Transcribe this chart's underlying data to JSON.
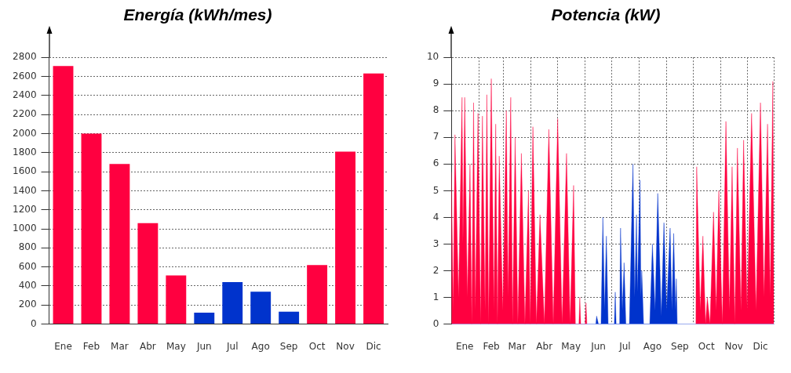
{
  "chart_data": [
    {
      "type": "bar",
      "title": "Energía (kWh/mes)",
      "categories": [
        "Ene",
        "Feb",
        "Mar",
        "Abr",
        "May",
        "Jun",
        "Jul",
        "Ago",
        "Sep",
        "Oct",
        "Nov",
        "Dic"
      ],
      "values": [
        2710,
        2000,
        1680,
        1060,
        510,
        120,
        440,
        340,
        130,
        620,
        1810,
        2630
      ],
      "colors": [
        "#ff0040",
        "#ff0040",
        "#ff0040",
        "#ff0040",
        "#ff0040",
        "#0033cc",
        "#0033cc",
        "#0033cc",
        "#0033cc",
        "#ff0040",
        "#ff0040",
        "#ff0040"
      ],
      "ylim": [
        0,
        2800
      ],
      "yticks": [
        0,
        200,
        400,
        600,
        800,
        1000,
        1200,
        1400,
        1600,
        1800,
        2000,
        2200,
        2400,
        2600,
        2800
      ],
      "grid": "y"
    },
    {
      "type": "area",
      "title": "Potencia (kW)",
      "xlim": [
        "--01-01",
        "--12-31"
      ],
      "xticks": [
        {
          "value": "--01-01",
          "label": null
        },
        {
          "value": "--01-16",
          "label": "Ene"
        },
        {
          "value": "--02-01",
          "label": null
        },
        {
          "value": "--02-15",
          "label": "Feb"
        },
        {
          "value": "--03-01",
          "label": null
        },
        {
          "value": "--03-16",
          "label": "Mar"
        },
        {
          "value": "--04-01",
          "label": null
        },
        {
          "value": "--04-16",
          "label": "Abr"
        },
        {
          "value": "--05-01",
          "label": null
        },
        {
          "value": "--05-16",
          "label": "May"
        },
        {
          "value": "--06-01",
          "label": null
        },
        {
          "value": "--06-16",
          "label": "Jun"
        },
        {
          "value": "--07-01",
          "label": null
        },
        {
          "value": "--07-16",
          "label": "Jul"
        },
        {
          "value": "--08-01",
          "label": null
        },
        {
          "value": "--08-16",
          "label": "Ago"
        },
        {
          "value": "--09-01",
          "label": null
        },
        {
          "value": "--09-16",
          "label": "Sep"
        },
        {
          "value": "--10-01",
          "label": null
        },
        {
          "value": "--10-16",
          "label": "Oct"
        },
        {
          "value": "--11-01",
          "label": null
        },
        {
          "value": "--11-16",
          "label": "Nov"
        },
        {
          "value": "--12-01",
          "label": null
        },
        {
          "value": "--12-16",
          "label": "Dic"
        },
        {
          "value": "--12-31",
          "label": null
        }
      ],
      "ylim": [
        0,
        10
      ],
      "yticks": [
        0,
        1,
        2,
        3,
        4,
        5,
        6,
        7,
        8,
        9,
        10
      ],
      "grid": true,
      "series": [
        {
          "color": "#ff0040",
          "x": [
            "--01-01",
            "--01-03",
            "--01-05",
            "--01-09",
            "--01-13",
            "--01-14",
            "--01-16",
            "--01-19",
            "--01-22",
            "--01-24",
            "--01-26",
            "--01-28",
            "--01-31",
            "--02-03",
            "--02-05",
            "--02-08",
            "--02-10",
            "--02-12",
            "--02-15",
            "--02-18",
            "--02-20",
            "--02-22",
            "--02-24",
            "--02-28",
            "--03-04",
            "--03-06",
            "--03-09",
            "--03-11",
            "--03-14",
            "--03-17",
            "--03-21",
            "--03-25",
            "--03-29",
            "--03-31",
            "--04-03",
            "--04-07",
            "--04-11",
            "--04-16",
            "--04-21",
            "--04-26",
            "--05-01",
            "--05-06",
            "--05-11",
            "--05-15",
            "--05-19",
            "--05-21",
            "--05-25",
            "--05-26",
            "--05-27",
            "--06-01",
            "--06-02",
            "--06-03",
            "--07-01",
            "--10-04",
            "--10-05",
            "--10-09",
            "--10-12",
            "--10-15",
            "--10-17",
            "--10-20",
            "--10-24",
            "--10-27",
            "--10-30",
            "--11-03",
            "--11-07",
            "--11-11",
            "--11-14",
            "--11-17",
            "--11-20",
            "--11-24",
            "--11-27",
            "--12-01",
            "--12-06",
            "--12-11",
            "--12-16",
            "--12-20",
            "--12-24",
            "--12-27",
            "--12-30",
            "--12-31"
          ],
          "values": [
            5.7,
            0.5,
            7.1,
            1,
            8.5,
            3,
            8.5,
            1,
            6.0,
            0,
            8.3,
            0.5,
            7.9,
            0,
            7.8,
            0.5,
            8.6,
            0,
            9.2,
            0.5,
            7.5,
            0,
            6.3,
            0.5,
            8.0,
            1,
            8.5,
            0,
            7.0,
            0,
            6.4,
            0,
            5.0,
            0,
            7.4,
            0,
            4.1,
            0,
            7.3,
            0,
            7.7,
            0,
            6.4,
            0,
            5.2,
            0,
            0,
            1.0,
            0,
            0,
            0.8,
            0,
            null,
            0,
            5.9,
            0.5,
            3.3,
            0,
            1.0,
            0,
            4.2,
            0.5,
            5.0,
            0,
            7.6,
            0.5,
            5.9,
            0,
            6.6,
            0.5,
            6.9,
            0.5,
            7.9,
            0.5,
            8.3,
            1,
            7.5,
            1,
            9.1,
            1.5
          ]
        },
        {
          "color": "#0033cc",
          "x": [
            "--06-13",
            "--06-14",
            "--06-16",
            "--06-19",
            "--06-21",
            "--06-23",
            "--06-25",
            "--06-27",
            "--07-04",
            "--07-05",
            "--07-06",
            "--07-10",
            "--07-11",
            "--07-13",
            "--07-15",
            "--07-17",
            "--07-21",
            "--07-25",
            "--07-27",
            "--07-29",
            "--07-30",
            "--08-02",
            "--08-03",
            "--08-04",
            "--08-06",
            "--08-13",
            "--08-16",
            "--08-19",
            "--08-22",
            "--08-26",
            "--08-29",
            "--09-01",
            "--09-05",
            "--09-07",
            "--09-09",
            "--09-11",
            "--09-12",
            "--09-13"
          ],
          "values": [
            0,
            0.3,
            0,
            0,
            4.0,
            0.5,
            3.3,
            0,
            0,
            1.2,
            0,
            0,
            3.6,
            0.5,
            2.3,
            0,
            0,
            6.0,
            1,
            4.1,
            1.2,
            5.4,
            1,
            2.0,
            0,
            0,
            3.0,
            0.5,
            4.9,
            0.3,
            3.8,
            0.5,
            3.6,
            0.5,
            3.4,
            0.5,
            1.7,
            0
          ]
        }
      ]
    }
  ]
}
